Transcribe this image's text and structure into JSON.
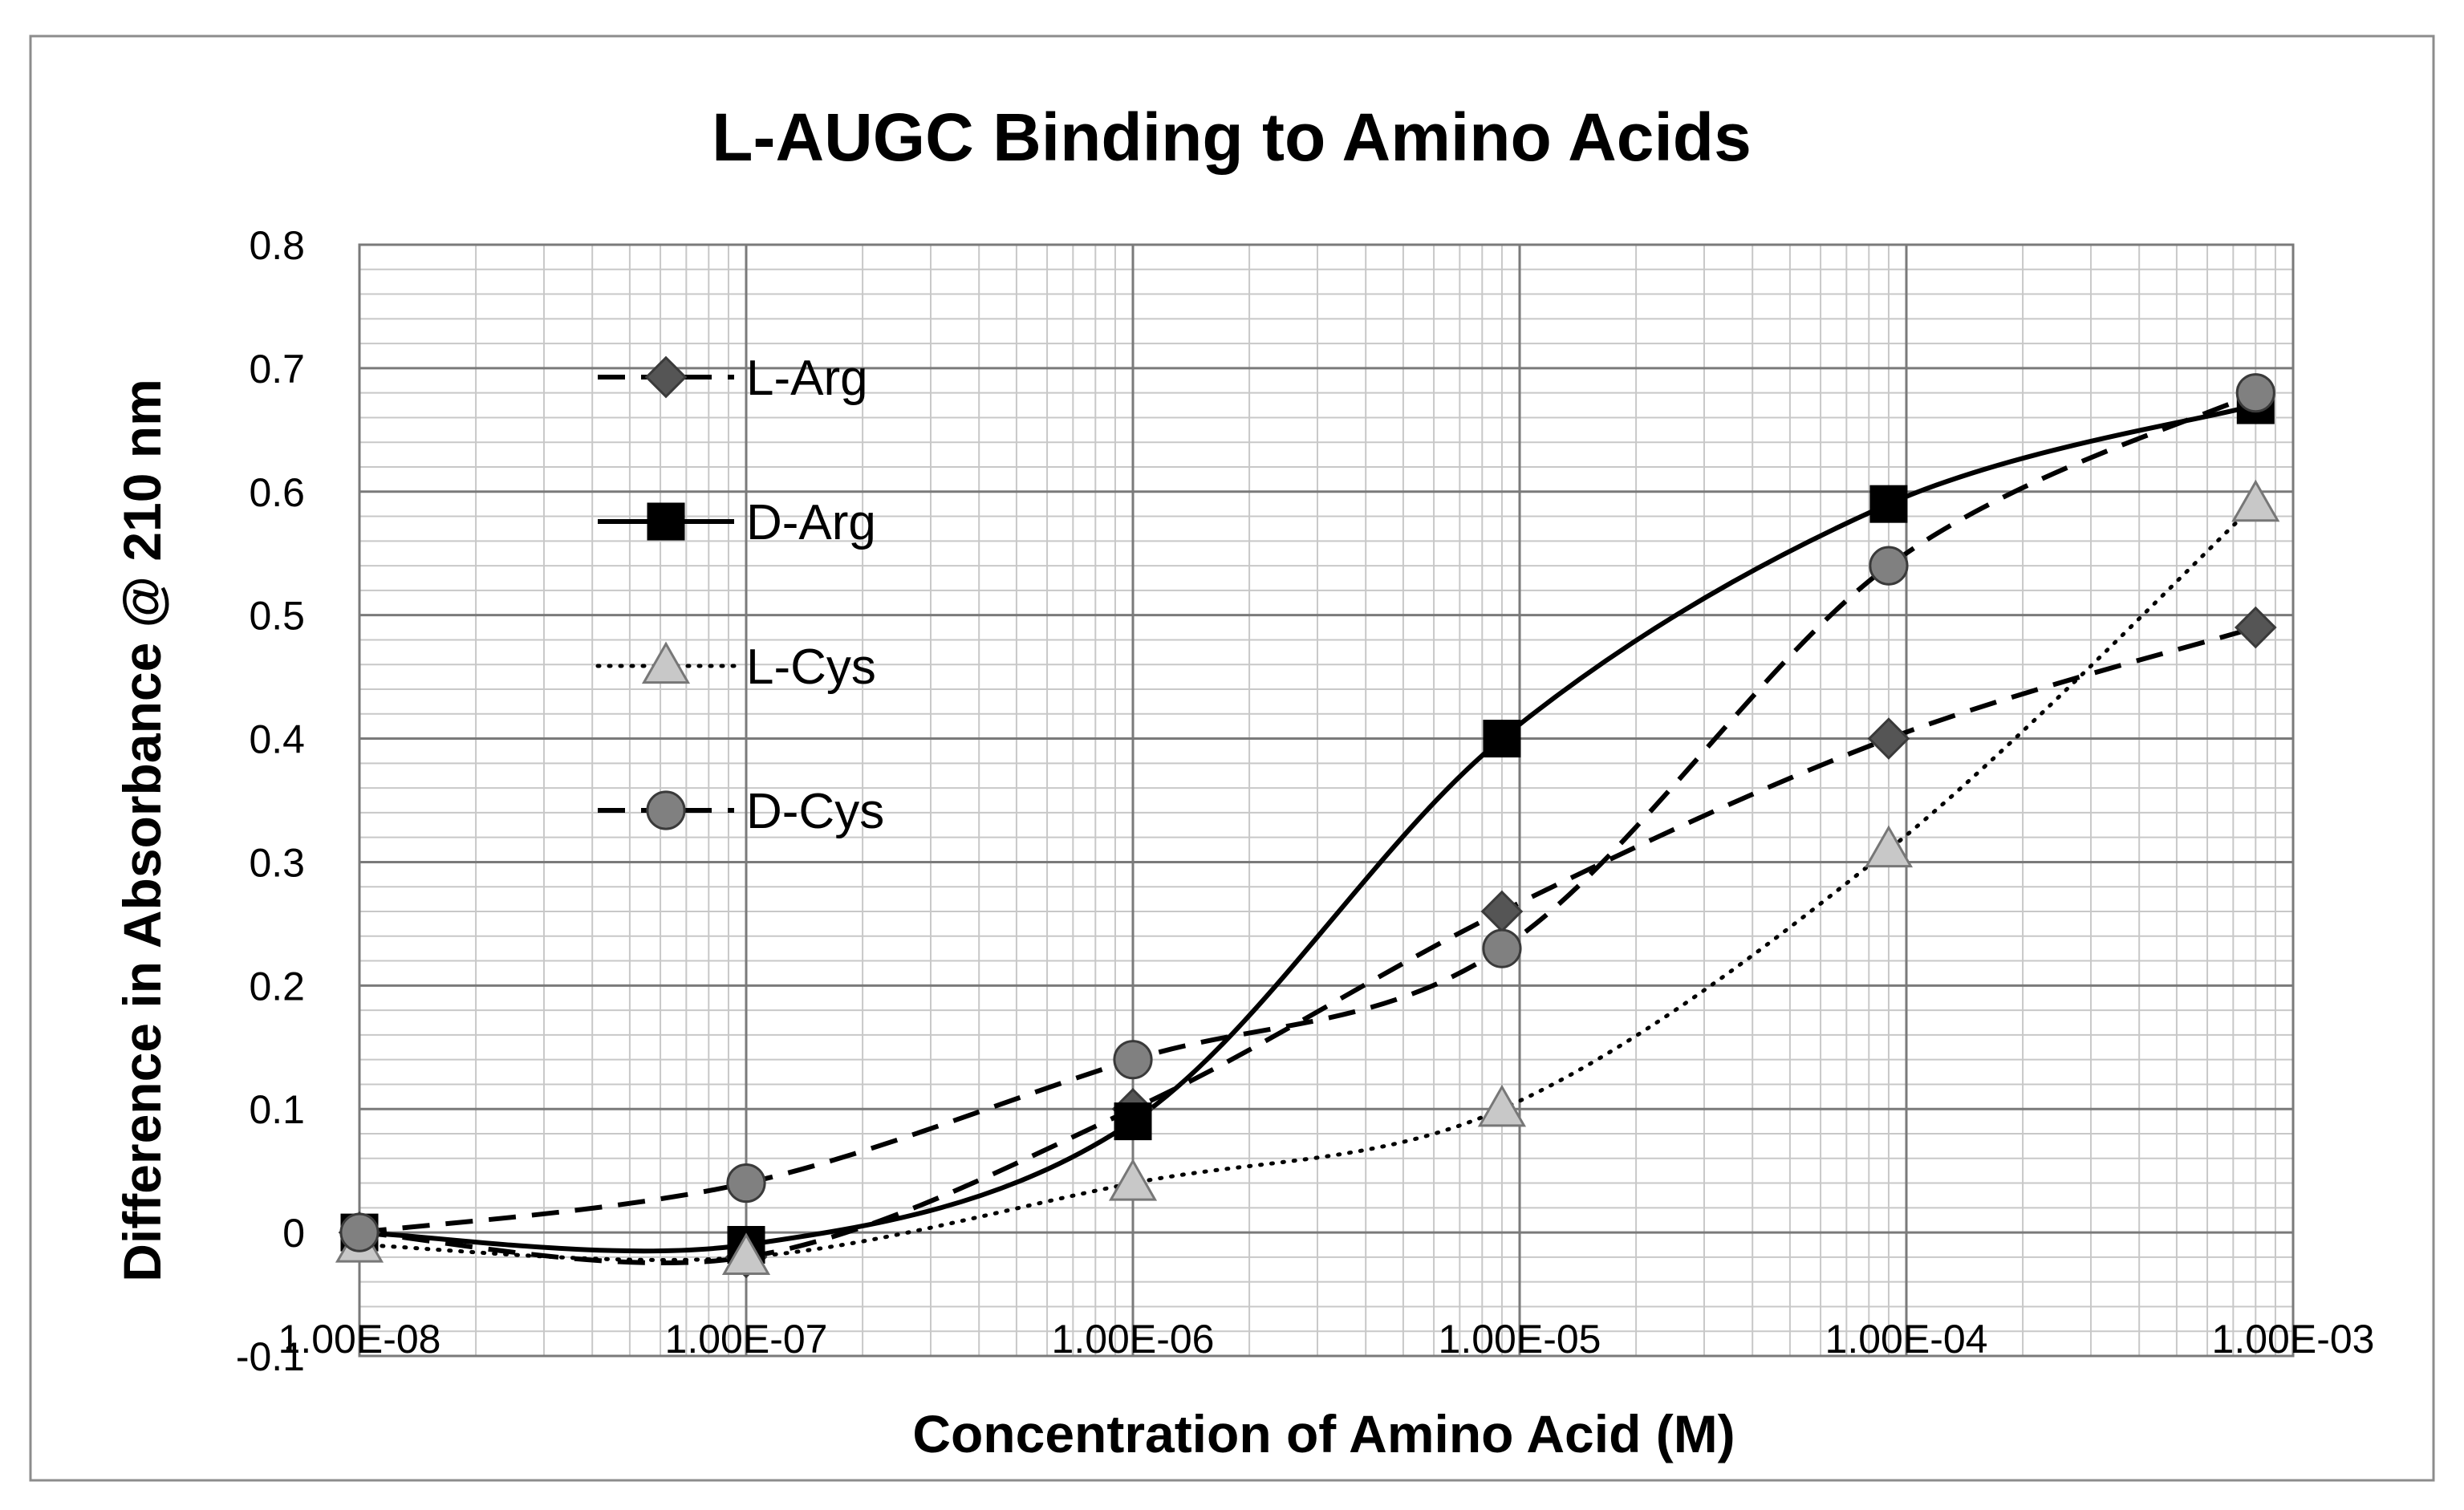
{
  "chart_data": {
    "type": "line",
    "title": "L-AUGC Binding to Amino Acids",
    "xlabel": "Concentration of Amino Acid (M)",
    "ylabel": "Difference in Absorbance @ 210 nm",
    "x_scale": "log",
    "xlim": [
      1e-08,
      0.001
    ],
    "ylim": [
      -0.1,
      0.8
    ],
    "x_ticks": [
      1e-08,
      1e-07,
      1e-06,
      1e-05,
      0.0001,
      0.001
    ],
    "x_tick_labels": [
      "1.00E-08",
      "1.00E-07",
      "1.00E-06",
      "1.00E-05",
      "1.00E-04",
      "1.00E-03"
    ],
    "y_ticks": [
      -0.1,
      0,
      0.1,
      0.2,
      0.3,
      0.4,
      0.5,
      0.6,
      0.7,
      0.8
    ],
    "y_tick_labels": [
      "-0.1",
      "0",
      "0.1",
      "0.2",
      "0.3",
      "0.4",
      "0.5",
      "0.6",
      "0.7",
      "0.8"
    ],
    "grid": true,
    "legend_position": "top-left",
    "x": [
      1e-08,
      1e-07,
      1e-06,
      9e-06,
      9e-05,
      0.0008
    ],
    "series": [
      {
        "name": "L-Arg",
        "values": [
          0.0,
          -0.02,
          0.1,
          0.26,
          0.4,
          0.49
        ],
        "line": "dashed",
        "marker": "diamond",
        "marker_color": "#555555"
      },
      {
        "name": "D-Arg",
        "values": [
          0.0,
          -0.01,
          0.09,
          0.4,
          0.59,
          0.67
        ],
        "line": "solid",
        "marker": "square",
        "marker_color": "#000000"
      },
      {
        "name": "L-Cys",
        "values": [
          -0.01,
          -0.02,
          0.04,
          0.1,
          0.31,
          0.59
        ],
        "line": "dotted",
        "marker": "triangle",
        "marker_color": "#c8c8c8"
      },
      {
        "name": "D-Cys",
        "values": [
          0.0,
          0.04,
          0.14,
          0.23,
          0.54,
          0.68
        ],
        "line": "dashed",
        "marker": "circle",
        "marker_color": "#808080"
      }
    ]
  }
}
